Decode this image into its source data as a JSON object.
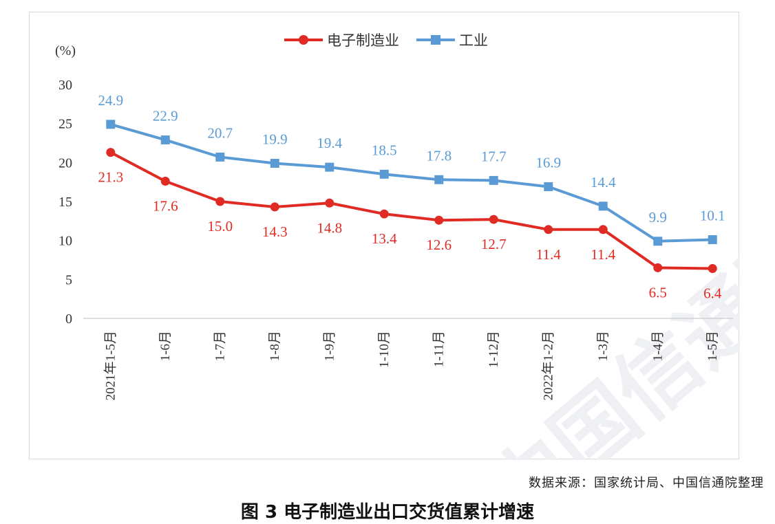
{
  "chart_data": {
    "type": "line",
    "unit_label": "(%)",
    "categories": [
      "2021年1-5月",
      "1-6月",
      "1-7月",
      "1-8月",
      "1-9月",
      "1-10月",
      "1-11月",
      "1-12月",
      "2022年1-2月",
      "1-3月",
      "1-4月",
      "1-5月"
    ],
    "ylim": [
      0,
      30
    ],
    "yticks": [
      0,
      5,
      10,
      15,
      20,
      25,
      30
    ],
    "grid": false,
    "legend_position": "top-center",
    "series": [
      {
        "name": "电子制造业",
        "color": "#e02b24",
        "marker": "circle",
        "values": [
          21.3,
          17.6,
          15.0,
          14.3,
          14.8,
          13.4,
          12.6,
          12.7,
          11.4,
          11.4,
          6.5,
          6.4
        ],
        "labels": [
          "21.3",
          "17.6",
          "15.0",
          "14.3",
          "14.8",
          "13.4",
          "12.6",
          "12.7",
          "11.4",
          "11.4",
          "6.5",
          "6.4"
        ]
      },
      {
        "name": "工业",
        "color": "#5b9bd5",
        "marker": "square",
        "values": [
          24.9,
          22.9,
          20.7,
          19.9,
          19.4,
          18.5,
          17.8,
          17.7,
          16.9,
          14.4,
          9.9,
          10.1
        ],
        "labels": [
          "24.9",
          "22.9",
          "20.7",
          "19.9",
          "19.4",
          "18.5",
          "17.8",
          "17.7",
          "16.9",
          "14.4",
          "9.9",
          "10.1"
        ]
      }
    ]
  },
  "source_note": "数据来源：国家统计局、中国信通院整理",
  "caption": "图 3  电子制造业出口交货值累计增速",
  "watermark_text": "中国信通院"
}
